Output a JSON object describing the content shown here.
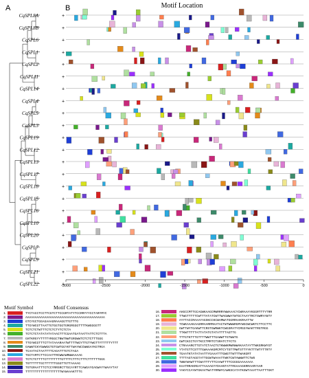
{
  "panel_labels": {
    "a": "A",
    "b": "B"
  },
  "title": "Motif Location",
  "axis": {
    "ticks": [
      "-3000",
      "-2500",
      "-2000",
      "-1500",
      "-1000",
      "-500",
      "0"
    ],
    "min": -3000,
    "max": 0
  },
  "genes": [
    "CqSPL8A",
    "CqSPL8B",
    "CqSPL6",
    "CqSPL1",
    "CqSPL2",
    "CqSPL11",
    "CqSPL14",
    "CqSPL4",
    "CqSPL5",
    "CqSPL3",
    "CqSPL19",
    "CqSPL12",
    "CqSPL13",
    "CqSPL17",
    "CqSPL18",
    "CqSPL15",
    "CqSPL16",
    "CqSPL10",
    "CqSPL20",
    "CqSPL7",
    "CqSPL9",
    "CqSPL21",
    "CqSPL22"
  ],
  "legend": {
    "symbol_header": "Motif Symbol",
    "consensus_header": "Motif Consensus",
    "motifs": [
      {
        "n": "1.",
        "color": "#d92020",
        "seq": "TYCTACCTCCTTCGTCTTCCGRTATYTCCRRYYYCCTARYMYC"
      },
      {
        "n": "2.",
        "color": "#7a1a8c",
        "seq": "AAAAAAAAAAAAAAAAAAAAAAAAAAAAAAAAAAAAAAAAAA"
      },
      {
        "n": "3.",
        "color": "#1f3fd6",
        "seq": "GTCYGCTGGAGAAAGRAAAGGTTGTTTG"
      },
      {
        "n": "4.",
        "color": "#1ca9a1",
        "seq": "TTGYWCGTTAATTGTGGTGGTGRGRGGGTTTTKWGGGGTT"
      },
      {
        "n": "5.",
        "color": "#d8e21c",
        "seq": "TCTCTCTWTTTCTCTCTYTCTCTA"
      },
      {
        "n": "6.",
        "color": "#43b02a",
        "seq": "TCTCTCTATATATATAACTTTCGAATGATAATTATTCTCTTTA"
      },
      {
        "n": "7.",
        "color": "#b8b8b8",
        "seq": "GHTKRGYYTTTTYRGGCTNWTNWTGRGWWTCTCTCTTTGGG"
      },
      {
        "n": "8.",
        "color": "#e48a1a",
        "seq": "TTGYWCGTTTCTTATAAARAATWTTTTWGYTTGTYWGTTYTTTTTYTTT"
      },
      {
        "n": "9.",
        "color": "#3d8a6a",
        "seq": "GAWWTCKYGWWGGTGTGWTGGYKTTWAYWCCWWGAYKGTRGA"
      },
      {
        "n": "10.",
        "color": "#8a1616",
        "seq": "TCAATACTAATTTTCAGATTTGTCTAGA"
      },
      {
        "n": "11.",
        "color": "#2aa9e0",
        "seq": "TGCTAMTCTTCCAATTRCWWAWRWWAAAAG"
      },
      {
        "n": "12.",
        "color": "#d97ad0",
        "seq": "TCTCTCTTTTCTTTTTTTTGTTTTCTTTCTTTCTTTTTTGGG"
      },
      {
        "n": "13.",
        "color": "#8a8a1a",
        "seq": "TGTTTTTTGCTTTTTTGGGTTGTTAAAAG"
      },
      {
        "n": "14.",
        "color": "#1a1a8a",
        "seq": "TGTGRAATTTCTCCYRRSRCTTGCAYRTTCAWGAYGAGWAYYWAAYTAY"
      },
      {
        "n": "15.",
        "color": "#6a3fd0",
        "seq": "TTTTTTTTTTTTTTTTTTTWYWAAAKTTTG"
      },
      {
        "n": "16.",
        "color": "#c8287a",
        "seq": "AHGCCMTTGCAGWKAAGCMWRRRYWWAAACYCWRAAAYKGGRTTTYTRR"
      },
      {
        "n": "17.",
        "color": "#9acd32",
        "seq": "TTWGTTTTTCWTTTATATCWTTWAGWWATWTGCTAAYTRCTSWRYANTY"
      },
      {
        "n": "18.",
        "color": "#ff7f50",
        "seq": "AYYTACCRAAAYAGSKCCKCWAMWATGGRRAAKRAATTW"
      },
      {
        "n": "19.",
        "color": "#e8b4d8",
        "seq": "TCWKAAAKAAGRRAARRMAATACTWTWWWRGMYWGCWCWKTCTTCCTTC"
      },
      {
        "n": "20.",
        "color": "#f0e68c",
        "seq": "GWTTWYTGAKWTTCRSTGWRWKTCWGSMATYCMGGYWAKTTRGTRGG"
      },
      {
        "n": "21.",
        "color": "#b0e0a0",
        "seq": "TTKWTTTTTATTATATGTATATTTTAGTTG"
      },
      {
        "n": "22.",
        "color": "#ffa07a",
        "seq": "TTTGTKTTTGTTTTWWTTTGAWWTTGTWWTG"
      },
      {
        "n": "23.",
        "color": "#90c8f0",
        "seq": "GWTCKCCTGYTKCCTMRTCTSRATCTYCTS"
      },
      {
        "n": "24.",
        "color": "#c890e8",
        "seq": "CTRAAARGTTGTATCTAACTGTKWWKMWRWWAKAATAYTTWKGRKWYGT"
      },
      {
        "n": "25.",
        "color": "#7fffd4",
        "seq": "YTATGTTCSTTTGWAAAKGMCMTCYTSTTMWTSTTYYKTTTWTYTTRTY"
      },
      {
        "n": "26.",
        "color": "#a0522d",
        "seq": "TGAATKTATATAATTYGAAATTTGWGTTWTTTWAKGRT"
      },
      {
        "n": "27.",
        "color": "#40e0a0",
        "seq": "TTTTAGTAGGTATTGGWTWAAATTWKTCWTAWWWTTCTWS"
      },
      {
        "n": "28.",
        "color": "#4169e1",
        "seq": "TWWYWAWTTTCWATTTYTTCAAWTTTTCGGGGAAAAAAA"
      },
      {
        "n": "29.",
        "color": "#e0a0ff",
        "seq": "KAATRRAKRGATTAAAAGYYDAANTATTRGAAAGKRRAARYAAR"
      },
      {
        "n": "30.",
        "color": "#9b30ff",
        "seq": "YAKYCCAYWTGKAVTWATYRMWYCAWKSCATATKGWTAAATTAATTTGKT"
      }
    ]
  }
}
